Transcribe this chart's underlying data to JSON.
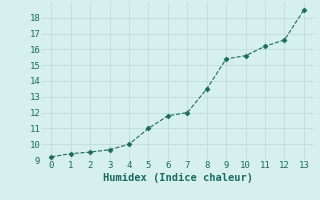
{
  "x": [
    0,
    1,
    2,
    3,
    4,
    5,
    6,
    7,
    8,
    9,
    10,
    11,
    12,
    13
  ],
  "y": [
    9.2,
    9.4,
    9.5,
    9.65,
    10.0,
    11.0,
    11.8,
    12.0,
    13.5,
    15.4,
    15.6,
    16.2,
    16.6,
    18.5
  ],
  "xlabel": "Humidex (Indice chaleur)",
  "ylim": [
    9,
    19
  ],
  "xlim": [
    -0.5,
    13.5
  ],
  "yticks": [
    9,
    10,
    11,
    12,
    13,
    14,
    15,
    16,
    17,
    18
  ],
  "xticks": [
    0,
    1,
    2,
    3,
    4,
    5,
    6,
    7,
    8,
    9,
    10,
    11,
    12,
    13
  ],
  "line_color": "#1a6b5e",
  "marker_color": "#1a6b5e",
  "bg_color": "#d6f0ee",
  "grid_color": "#c0ddd9",
  "tick_label_color": "#1a6b5e",
  "xlabel_color": "#1a6b5e",
  "font_family": "monospace",
  "tick_fontsize": 6.5,
  "xlabel_fontsize": 7.5
}
